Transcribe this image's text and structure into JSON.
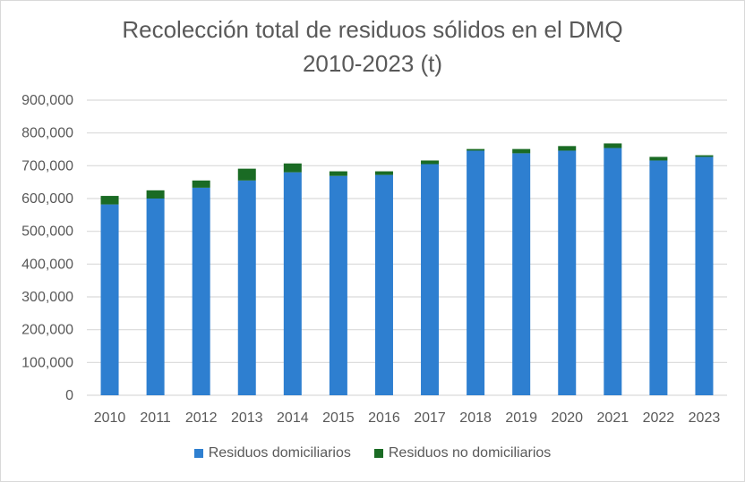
{
  "chart_data": {
    "type": "bar",
    "stacked": true,
    "title": [
      "Recolección total de residuos sólidos en el DMQ",
      "2010-2023  (t)"
    ],
    "xlabel": "",
    "ylabel": "",
    "ylim": [
      0,
      900000
    ],
    "yticks": [
      0,
      100000,
      200000,
      300000,
      400000,
      500000,
      600000,
      700000,
      800000,
      900000
    ],
    "ytick_labels": [
      "0",
      "100,000",
      "200,000",
      "300,000",
      "400,000",
      "500,000",
      "600,000",
      "700,000",
      "800,000",
      "900,000"
    ],
    "grid": true,
    "legend_position": "bottom",
    "categories": [
      "2010",
      "2011",
      "2012",
      "2013",
      "2014",
      "2015",
      "2016",
      "2017",
      "2018",
      "2019",
      "2020",
      "2021",
      "2022",
      "2023"
    ],
    "series": [
      {
        "name": "Residuos domiciliarios",
        "color": "#2e7fd0",
        "values": [
          582000,
          600000,
          633000,
          655000,
          680000,
          669000,
          672000,
          705000,
          746000,
          738000,
          746000,
          754000,
          716000,
          727000
        ]
      },
      {
        "name": "Residuos no domiciliarios",
        "color": "#1a6b24",
        "values": [
          26000,
          25000,
          22000,
          36000,
          27000,
          14000,
          11000,
          11000,
          5000,
          13000,
          14000,
          14000,
          11000,
          5000
        ]
      }
    ]
  }
}
